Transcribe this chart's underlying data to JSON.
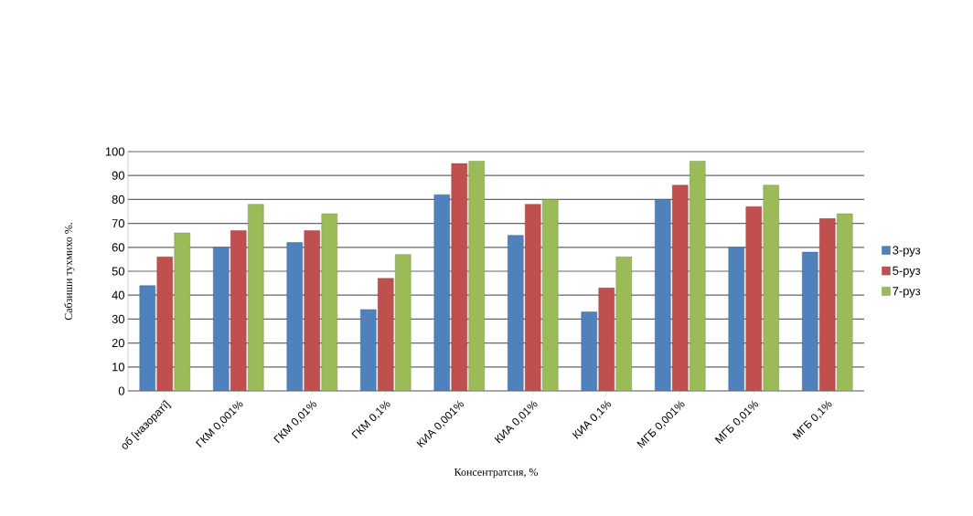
{
  "chart_data": {
    "type": "bar",
    "xlabel": "Консентратсия, %",
    "ylabel": "Сабзиши тухмихо %.",
    "categories": [
      "об [назоратї]",
      "ГКМ 0,001%",
      "ГКМ 0,01%",
      "ГКМ 0,1%",
      "КИА 0,001%",
      "КИА 0,01%",
      "КИА 0,1%",
      "МГБ 0,001%",
      "МГБ 0,01%",
      "МГБ 0,1%"
    ],
    "series": [
      {
        "name": "3-руз",
        "color": "#4f81bd",
        "values": [
          44,
          60,
          62,
          34,
          82,
          65,
          33,
          80,
          60,
          58
        ]
      },
      {
        "name": "5-руз",
        "color": "#c0504d",
        "values": [
          56,
          67,
          67,
          47,
          95,
          78,
          43,
          86,
          77,
          72
        ]
      },
      {
        "name": "7-руз",
        "color": "#9bbb59",
        "values": [
          66,
          78,
          74,
          57,
          96,
          80,
          56,
          96,
          86,
          74
        ]
      }
    ],
    "ylim": [
      0,
      100
    ],
    "yticks": [
      0,
      10,
      20,
      30,
      40,
      50,
      60,
      70,
      80,
      90,
      100
    ],
    "grid": "y",
    "legend": "right"
  }
}
